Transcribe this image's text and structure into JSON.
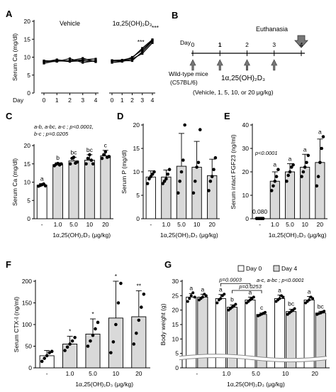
{
  "chart_data": [
    {
      "id": "A",
      "type": "line",
      "panel_label": "A",
      "ylabel": "Serum Ca (mg/dl)",
      "xlabel": "Day",
      "ylim": [
        0,
        20
      ],
      "yticks": [
        0,
        5,
        10,
        15,
        20
      ],
      "x": [
        0,
        1,
        2,
        3,
        4
      ],
      "groups": [
        {
          "name": "Vehicle",
          "series": [
            [
              8.3,
              9.0,
              8.8,
              9.0,
              8.9
            ],
            [
              8.8,
              8.8,
              9.6,
              8.5,
              9.0
            ],
            [
              9.0,
              8.9,
              9.0,
              9.7,
              8.7
            ],
            [
              8.7,
              9.3,
              8.8,
              9.3,
              9.5
            ]
          ]
        },
        {
          "name": "1α,25(OH)₂D₃",
          "series": [
            [
              9.0,
              8.9,
              10.0,
              12.0,
              14.7
            ],
            [
              8.5,
              8.8,
              9.5,
              11.0,
              14.0
            ],
            [
              8.9,
              9.0,
              9.0,
              11.5,
              14.5
            ],
            [
              9.1,
              9.2,
              9.8,
              12.5,
              14.9
            ]
          ]
        }
      ],
      "sig": [
        {
          "group": 1,
          "day": 3,
          "text": "***"
        },
        {
          "group": 1,
          "day": 4,
          "text": "***"
        }
      ]
    },
    {
      "id": "C",
      "type": "bar",
      "panel_label": "C",
      "ylabel": "Serum Ca (mg/dl)",
      "xlabel": "1α,25(OH)₂D₃ (μg/kg)",
      "categories": [
        "-",
        "1.0",
        "5.0",
        "10",
        "20"
      ],
      "values": [
        9.2,
        14.8,
        15.8,
        16.0,
        17.2
      ],
      "errors": [
        0.4,
        0.5,
        1.0,
        1.5,
        1.5
      ],
      "points": [
        [
          8.9,
          9.1,
          9.3,
          9.5,
          9.0
        ],
        [
          14.5,
          14.9,
          15.1,
          14.7,
          15.0
        ],
        [
          15.0,
          16.5,
          16.8,
          15.2,
          15.5
        ],
        [
          15.0,
          16.5,
          17.5,
          16.0,
          15.0
        ],
        [
          16.5,
          17.5,
          18.3,
          16.8,
          17.0
        ]
      ],
      "letters": [
        "a",
        "b",
        "bc",
        "bc",
        "c"
      ],
      "ylim": [
        0,
        20
      ],
      "yticks": [
        0,
        5,
        10,
        15,
        20
      ],
      "stats": [
        "a-b, a-bc, a-c ; p<0.0001,",
        "b-c ; p=0.0205"
      ]
    },
    {
      "id": "D",
      "type": "bar",
      "panel_label": "D",
      "ylabel": "Serum P (mg/dl)",
      "xlabel": "1α,25(OH)₂D₃ (μg/kg)",
      "categories": [
        "-",
        "1.0",
        "5.0",
        "10",
        "20"
      ],
      "values": [
        8.9,
        8.9,
        11.2,
        11.0,
        9.2
      ],
      "errors": [
        1.3,
        1.5,
        7.0,
        5.5,
        3.5
      ],
      "points": [
        [
          7.5,
          8.5,
          9.0,
          9.5,
          10.0
        ],
        [
          7.5,
          8.0,
          8.5,
          9.5,
          10.5
        ],
        [
          5.5,
          8.0,
          10.0,
          12.5,
          20.0
        ],
        [
          5.5,
          8.0,
          11.0,
          12.0,
          19.0
        ],
        [
          6.0,
          8.0,
          9.0,
          10.5,
          13.0
        ]
      ],
      "ylim": [
        0,
        20
      ],
      "yticks": [
        0,
        5,
        10,
        15,
        20
      ]
    },
    {
      "id": "E",
      "type": "bar",
      "panel_label": "E",
      "ylabel": "Serum intact FGF23 (ng/ml)",
      "xlabel": "1α,25(OH)₂D₃ (μg/kg)",
      "categories": [
        "-",
        "1.0",
        "5.0",
        "10",
        "20"
      ],
      "values": [
        0.08,
        16.0,
        20.0,
        22.0,
        24.0
      ],
      "errors": [
        0,
        4.0,
        3.5,
        5.5,
        10.0
      ],
      "points": [
        [
          0.08,
          0.08,
          0.08,
          0.08,
          0.08
        ],
        [
          12.0,
          14.0,
          16.0,
          18.0,
          21.0
        ],
        [
          16.0,
          18.5,
          20.0,
          22.0,
          23.0
        ],
        [
          18.0,
          20.0,
          22.0,
          24.0,
          27.0
        ],
        [
          14.0,
          18.0,
          24.0,
          30.0,
          35.0
        ]
      ],
      "letters": [
        "",
        "a",
        "a",
        "a",
        "a"
      ],
      "value_label": "0.080",
      "ylim": [
        0,
        40
      ],
      "yticks": [
        0,
        10,
        20,
        30,
        40
      ],
      "stats": [
        "p<0.0001"
      ]
    },
    {
      "id": "F",
      "type": "bar",
      "panel_label": "F",
      "ylabel": "Serum CTX-I (ng/ml)",
      "xlabel": "1α,25(OH)₂D₃ (μg/kg)",
      "categories": [
        "-",
        "1.0",
        "5.0",
        "10",
        "20"
      ],
      "values": [
        28,
        55,
        78,
        115,
        118
      ],
      "errors": [
        12,
        18,
        35,
        85,
        60
      ],
      "points": [
        [
          15,
          22,
          28,
          35,
          38
        ],
        [
          40,
          48,
          55,
          62,
          70
        ],
        [
          50,
          62,
          75,
          90,
          105
        ],
        [
          35,
          60,
          100,
          150,
          195
        ],
        [
          55,
          80,
          110,
          140,
          170
        ]
      ],
      "letters": [
        "",
        "*",
        "*",
        "*",
        "**"
      ],
      "ylim": [
        0,
        200
      ],
      "yticks": [
        0,
        50,
        100,
        150,
        200
      ]
    },
    {
      "id": "G",
      "type": "bar",
      "panel_label": "G",
      "ylabel": "Body weight (g)",
      "xlabel": "1α,25(OH)₂D₃ (μg/kg)",
      "categories": [
        "-",
        "1.0",
        "5.0",
        "10",
        "20"
      ],
      "series": [
        {
          "name": "Day 0",
          "values": [
            24.5,
            24.0,
            23.5,
            24.0,
            23.5
          ],
          "errors": [
            1.2,
            1.4,
            1.0,
            1.2,
            1.2
          ],
          "points": [
            [
              23,
              24,
              25,
              26,
              24.5
            ],
            [
              22.5,
              23.5,
              24,
              25,
              25.5
            ],
            [
              22.5,
              23,
              23.5,
              24,
              24.5
            ],
            [
              23,
              23.5,
              24,
              25,
              24.5
            ],
            [
              22.5,
              23,
              23.5,
              24.5,
              24
            ]
          ]
        },
        {
          "name": "Day 4",
          "values": [
            24.5,
            21.0,
            18.5,
            19.5,
            19.0
          ],
          "errors": [
            1.0,
            0.8,
            0.5,
            0.8,
            0.6
          ],
          "points": [
            [
              23.5,
              24,
              24.5,
              25.5,
              25
            ],
            [
              20,
              20.5,
              21,
              21.5,
              22
            ],
            [
              18,
              18.3,
              18.6,
              18.9,
              19.2
            ],
            [
              18.5,
              19,
              19.5,
              20,
              20.5
            ],
            [
              18.5,
              18.8,
              19,
              19.3,
              19.6
            ]
          ]
        }
      ],
      "letters": [
        [
          "a",
          "a"
        ],
        [
          "a",
          "b"
        ],
        [
          "a",
          "c"
        ],
        [
          "a",
          "bc"
        ],
        [
          "a",
          "bc"
        ]
      ],
      "ylim": [
        0,
        30
      ],
      "yticks": [
        0,
        5,
        10,
        15,
        20,
        25,
        30
      ],
      "stats": [
        "a-c, a-bc ; p<0.0001"
      ],
      "brackets": [
        {
          "from": 1,
          "to": 2,
          "text": "p=0.0003"
        },
        {
          "from": 1,
          "to": 2,
          "text": "p=0.0253"
        }
      ]
    }
  ],
  "schematic": {
    "panel_label": "B",
    "day_label": "Day",
    "days": [
      "0",
      "1",
      "2",
      "3",
      "4"
    ],
    "event": "Euthanasia",
    "mice_line1": "Wild-type mice",
    "mice_line2": "(C57BL/6)",
    "treatment": "1α,25(OH)₂D₃",
    "doses": "(Vehicle, 1, 5, 10, or 20 μg/kg)"
  }
}
